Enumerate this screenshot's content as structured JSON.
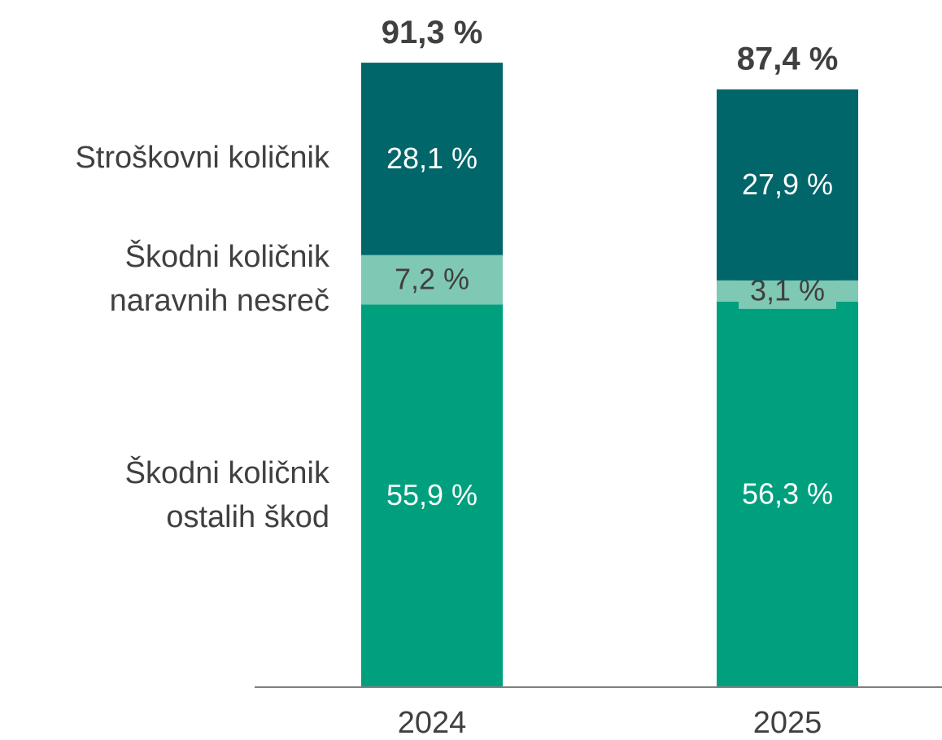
{
  "chart_data": {
    "type": "stacked_bar",
    "categories": [
      "2024",
      "2025"
    ],
    "series": [
      {
        "name": "Škodni količnik ostalih škod",
        "color": "#00a07e",
        "values": [
          55.9,
          56.3
        ],
        "value_labels": [
          "55,9 %",
          "56,3 %"
        ]
      },
      {
        "name": "Škodni količnik naravnih nesreč",
        "color": "#7fc8b4",
        "values": [
          7.2,
          3.1
        ],
        "value_labels": [
          "7,2 %",
          "3,1 %"
        ]
      },
      {
        "name": "Stroškovni količnik",
        "color": "#00666a",
        "values": [
          28.1,
          27.9
        ],
        "value_labels": [
          "28,1 %",
          "27,9 %"
        ]
      }
    ],
    "totals": [
      91.3,
      87.4
    ],
    "total_labels": [
      "91,3 %",
      "87,4 %"
    ],
    "ylim": [
      0,
      100
    ]
  }
}
